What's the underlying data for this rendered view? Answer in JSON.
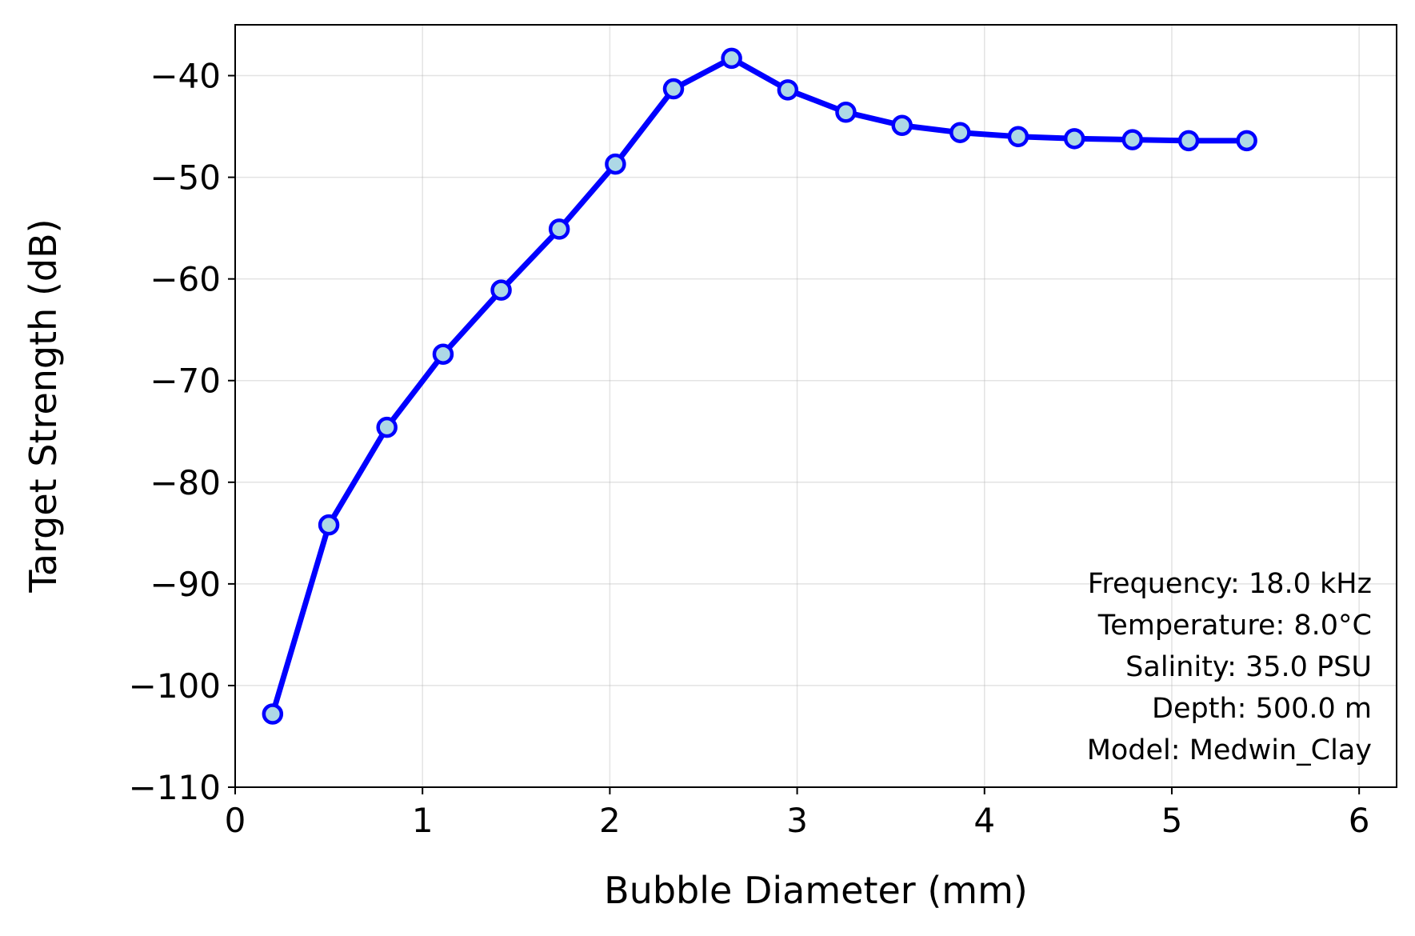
{
  "chart_data": {
    "type": "line",
    "title": "",
    "xlabel": "Bubble Diameter (mm)",
    "ylabel": "Target Strength (dB)",
    "xlim": [
      0,
      6.2
    ],
    "ylim": [
      -110,
      -35
    ],
    "xticks": [
      0,
      1,
      2,
      3,
      4,
      5,
      6
    ],
    "yticks": [
      -110,
      -100,
      -90,
      -80,
      -70,
      -60,
      -50,
      -40
    ],
    "grid": true,
    "line_color": "#0000ff",
    "marker_face_color": "#add8e6",
    "marker_edge_color": "#0000ff",
    "series": [
      {
        "x": [
          0.2,
          0.5,
          0.81,
          1.11,
          1.42,
          1.73,
          2.03,
          2.34,
          2.65,
          2.95,
          3.26,
          3.56,
          3.87,
          4.18,
          4.48,
          4.79,
          5.09,
          5.4
        ],
        "y": [
          -102.8,
          -84.2,
          -74.6,
          -67.4,
          -61.1,
          -55.1,
          -48.7,
          -41.3,
          -38.3,
          -41.4,
          -43.6,
          -44.9,
          -45.6,
          -46.0,
          -46.2,
          -46.3,
          -46.4,
          -46.4
        ]
      }
    ],
    "annotation": {
      "lines": [
        "Frequency: 18.0 kHz",
        "Temperature: 8.0°C",
        "Salinity: 35.0 PSU",
        "Depth: 500.0 m",
        "Model: Medwin_Clay"
      ],
      "position": "bottom-right"
    }
  }
}
